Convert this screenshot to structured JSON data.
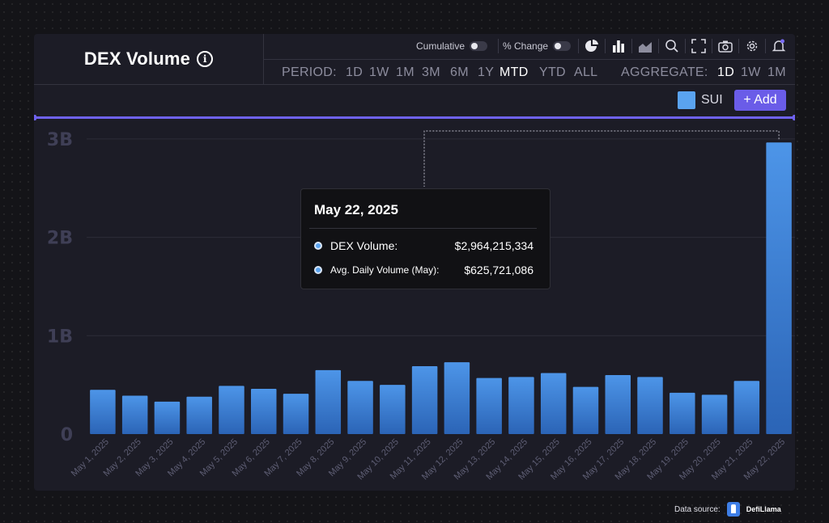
{
  "title": "DEX Volume",
  "toolbar": {
    "cumulative_label": "Cumulative",
    "pct_change_label": "% Change",
    "icons": [
      "pie-chart-icon",
      "bar-chart-icon",
      "area-chart-icon",
      "search-icon",
      "fullscreen-icon",
      "camera-icon",
      "gear-icon",
      "bell-icon"
    ]
  },
  "period": {
    "label": "PERIOD:",
    "options": [
      "1D",
      "1W",
      "1M",
      "3M",
      "6M",
      "1Y",
      "MTD",
      "YTD",
      "ALL"
    ],
    "selected": "MTD"
  },
  "aggregate": {
    "label": "AGGREGATE:",
    "options": [
      "1D",
      "1W",
      "1M"
    ],
    "selected": "1D"
  },
  "legend": {
    "series_label": "SUI",
    "add_label": "+ Add",
    "color": "#5aa3ef",
    "accent": "#6a5ce8"
  },
  "tooltip": {
    "date": "May 22, 2025",
    "rows": [
      {
        "label": "DEX Volume:",
        "value": "$2,964,215,334"
      },
      {
        "label": "Avg. Daily Volume (May):",
        "value": "$625,721,086"
      }
    ]
  },
  "footer": {
    "source_label": "Data source:",
    "brand": "DefiLlama"
  },
  "chart_data": {
    "type": "bar",
    "categories": [
      "May 1, 2025",
      "May 2, 2025",
      "May 3, 2025",
      "May 4, 2025",
      "May 5, 2025",
      "May 6, 2025",
      "May 7, 2025",
      "May 8, 2025",
      "May 9, 2025",
      "May 10, 2025",
      "May 11, 2025",
      "May 12, 2025",
      "May 13, 2025",
      "May 14, 2025",
      "May 15, 2025",
      "May 16, 2025",
      "May 17, 2025",
      "May 18, 2025",
      "May 19, 2025",
      "May 20, 2025",
      "May 21, 2025",
      "May 22, 2025"
    ],
    "series": [
      {
        "name": "SUI",
        "values": [
          450000000,
          390000000,
          330000000,
          380000000,
          490000000,
          460000000,
          410000000,
          650000000,
          540000000,
          500000000,
          690000000,
          730000000,
          570000000,
          580000000,
          620000000,
          480000000,
          600000000,
          580000000,
          420000000,
          400000000,
          540000000,
          2964215334
        ]
      }
    ],
    "y_ticks": [
      {
        "value": 0,
        "label": "0"
      },
      {
        "value": 1000000000,
        "label": "1B"
      },
      {
        "value": 2000000000,
        "label": "2B"
      },
      {
        "value": 3000000000,
        "label": "3B"
      }
    ],
    "ylim": [
      0,
      3000000000
    ],
    "grid": true,
    "highlighted_category": "May 22, 2025"
  }
}
